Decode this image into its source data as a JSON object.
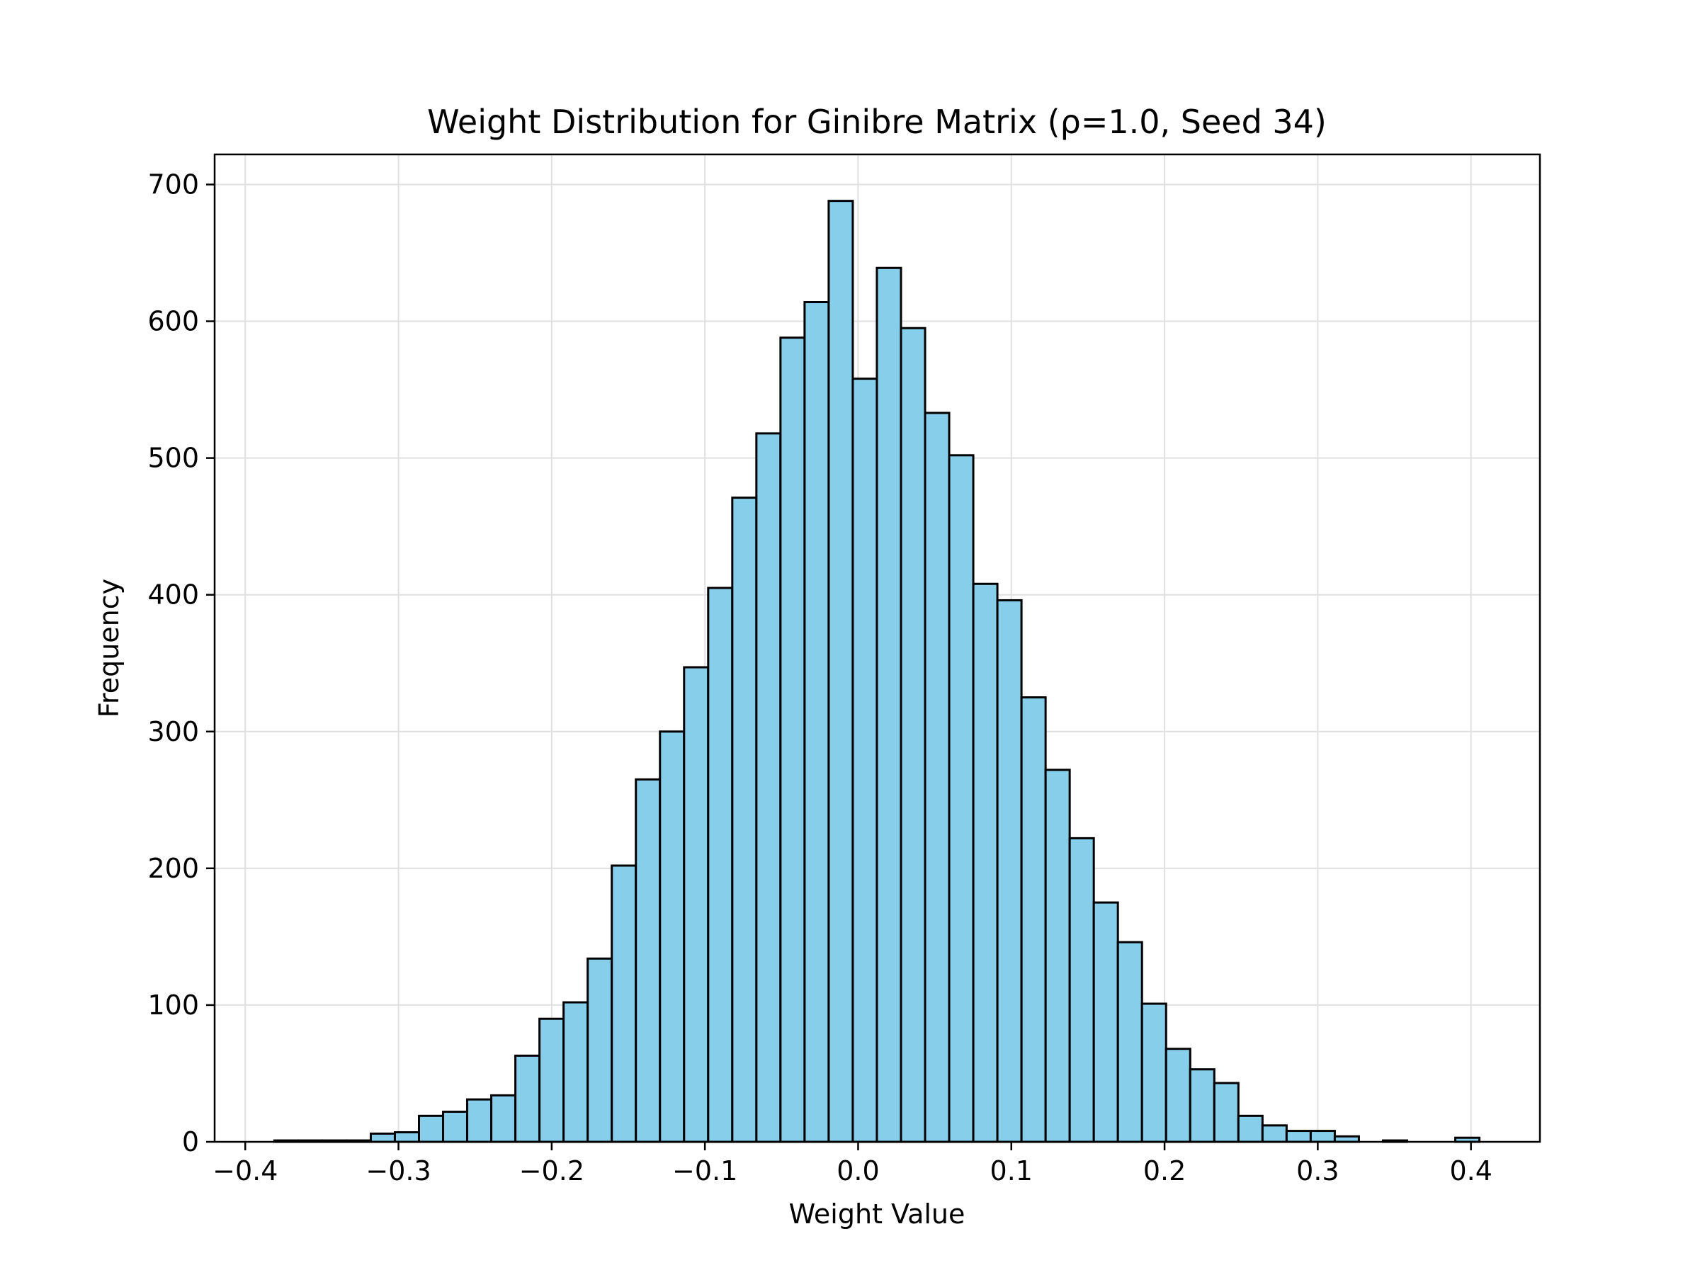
{
  "chart_data": {
    "type": "bar",
    "subtype": "histogram",
    "title": "Weight Distribution for Ginibre Matrix (ρ=1.0, Seed 34)",
    "xlabel": "Weight Value",
    "ylabel": "Frequency",
    "xlim": [
      -0.42,
      0.445
    ],
    "ylim": [
      0,
      722
    ],
    "x_ticks": [
      -0.4,
      -0.3,
      -0.2,
      -0.1,
      0.0,
      0.1,
      0.2,
      0.3,
      0.4
    ],
    "x_tick_labels": [
      "−0.4",
      "−0.3",
      "−0.2",
      "−0.1",
      "0.0",
      "0.1",
      "0.2",
      "0.3",
      "0.4"
    ],
    "y_ticks": [
      0,
      100,
      200,
      300,
      400,
      500,
      600,
      700
    ],
    "y_tick_labels": [
      "0",
      "100",
      "200",
      "300",
      "400",
      "500",
      "600",
      "700"
    ],
    "grid": true,
    "colors": {
      "bar_fill": "#87CEEB",
      "bar_edge": "#000000",
      "grid": "#e0e0e0"
    },
    "bin_start": -0.381,
    "bin_width": 0.01573,
    "values": [
      1,
      1,
      1,
      1,
      6,
      7,
      19,
      22,
      31,
      34,
      63,
      90,
      102,
      134,
      202,
      265,
      300,
      347,
      405,
      471,
      518,
      588,
      614,
      688,
      558,
      639,
      595,
      533,
      502,
      408,
      396,
      325,
      272,
      222,
      175,
      146,
      101,
      68,
      53,
      43,
      19,
      12,
      8,
      8,
      4,
      0,
      1,
      0,
      0,
      3
    ]
  }
}
